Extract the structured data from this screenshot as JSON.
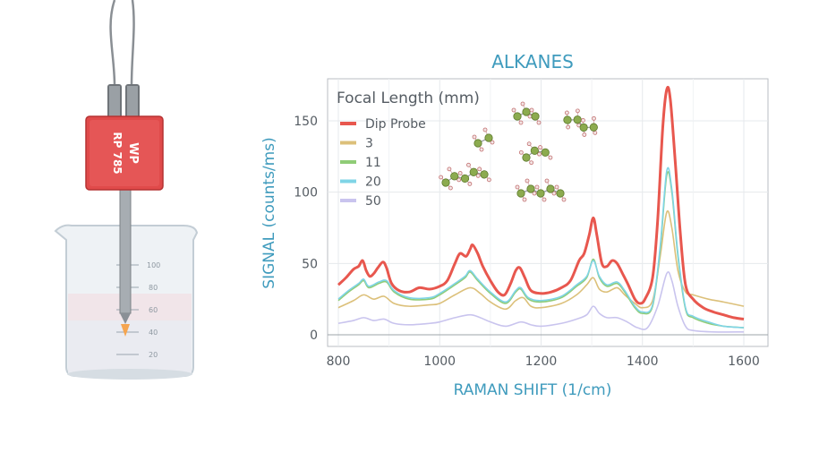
{
  "chart_data": {
    "type": "line",
    "title": "ALKANES",
    "xlabel": "RAMAN SHIFT (1/cm)",
    "ylabel": "SIGNAL (counts/ms)",
    "xlim": [
      780,
      1620
    ],
    "ylim": [
      -8,
      172
    ],
    "xticks": [
      800,
      1000,
      1200,
      1400,
      1600
    ],
    "yticks": [
      0,
      50,
      100,
      150
    ],
    "grid": true,
    "legend": {
      "title": "Focal Length (mm)",
      "position": "top-left"
    },
    "series": [
      {
        "name": "Dip Probe",
        "color": "#e8574e",
        "points": [
          [
            800,
            35
          ],
          [
            815,
            40
          ],
          [
            830,
            46
          ],
          [
            840,
            48
          ],
          [
            848,
            52
          ],
          [
            855,
            45
          ],
          [
            862,
            41
          ],
          [
            870,
            43
          ],
          [
            878,
            47
          ],
          [
            888,
            51
          ],
          [
            895,
            47
          ],
          [
            905,
            36
          ],
          [
            920,
            31
          ],
          [
            940,
            30
          ],
          [
            960,
            33
          ],
          [
            980,
            32
          ],
          [
            1000,
            34
          ],
          [
            1015,
            38
          ],
          [
            1030,
            50
          ],
          [
            1040,
            57
          ],
          [
            1052,
            55
          ],
          [
            1060,
            60
          ],
          [
            1065,
            63
          ],
          [
            1075,
            57
          ],
          [
            1085,
            48
          ],
          [
            1100,
            38
          ],
          [
            1115,
            30
          ],
          [
            1128,
            28
          ],
          [
            1140,
            36
          ],
          [
            1150,
            45
          ],
          [
            1158,
            47
          ],
          [
            1168,
            40
          ],
          [
            1180,
            31
          ],
          [
            1200,
            29
          ],
          [
            1220,
            30
          ],
          [
            1240,
            33
          ],
          [
            1258,
            38
          ],
          [
            1275,
            52
          ],
          [
            1285,
            57
          ],
          [
            1295,
            70
          ],
          [
            1303,
            82
          ],
          [
            1310,
            70
          ],
          [
            1320,
            50
          ],
          [
            1330,
            48
          ],
          [
            1340,
            52
          ],
          [
            1350,
            50
          ],
          [
            1362,
            42
          ],
          [
            1372,
            35
          ],
          [
            1385,
            25
          ],
          [
            1395,
            22
          ],
          [
            1405,
            25
          ],
          [
            1420,
            40
          ],
          [
            1430,
            80
          ],
          [
            1440,
            145
          ],
          [
            1448,
            172
          ],
          [
            1455,
            165
          ],
          [
            1465,
            120
          ],
          [
            1475,
            70
          ],
          [
            1485,
            35
          ],
          [
            1500,
            25
          ],
          [
            1520,
            19
          ],
          [
            1540,
            16
          ],
          [
            1560,
            14
          ],
          [
            1580,
            12
          ],
          [
            1600,
            11
          ]
        ]
      },
      {
        "name": "3",
        "color": "#dcc07a",
        "points": [
          [
            800,
            19
          ],
          [
            830,
            24
          ],
          [
            850,
            28
          ],
          [
            870,
            25
          ],
          [
            890,
            27
          ],
          [
            910,
            22
          ],
          [
            940,
            20
          ],
          [
            980,
            21
          ],
          [
            1000,
            22
          ],
          [
            1030,
            28
          ],
          [
            1060,
            33
          ],
          [
            1080,
            29
          ],
          [
            1100,
            23
          ],
          [
            1130,
            18
          ],
          [
            1150,
            24
          ],
          [
            1165,
            26
          ],
          [
            1180,
            20
          ],
          [
            1200,
            19
          ],
          [
            1240,
            22
          ],
          [
            1270,
            28
          ],
          [
            1290,
            35
          ],
          [
            1303,
            40
          ],
          [
            1315,
            32
          ],
          [
            1330,
            30
          ],
          [
            1350,
            33
          ],
          [
            1365,
            28
          ],
          [
            1385,
            22
          ],
          [
            1400,
            19
          ],
          [
            1420,
            24
          ],
          [
            1435,
            55
          ],
          [
            1448,
            86
          ],
          [
            1458,
            75
          ],
          [
            1470,
            45
          ],
          [
            1485,
            30
          ],
          [
            1500,
            28
          ],
          [
            1530,
            25
          ],
          [
            1560,
            23
          ],
          [
            1600,
            20
          ]
        ]
      },
      {
        "name": "11",
        "color": "#8fcc77",
        "points": [
          [
            800,
            24
          ],
          [
            820,
            30
          ],
          [
            840,
            35
          ],
          [
            850,
            38
          ],
          [
            860,
            33
          ],
          [
            880,
            36
          ],
          [
            895,
            37
          ],
          [
            910,
            30
          ],
          [
            940,
            25
          ],
          [
            980,
            25
          ],
          [
            1000,
            28
          ],
          [
            1030,
            35
          ],
          [
            1050,
            40
          ],
          [
            1060,
            44
          ],
          [
            1075,
            38
          ],
          [
            1100,
            29
          ],
          [
            1130,
            22
          ],
          [
            1150,
            30
          ],
          [
            1160,
            32
          ],
          [
            1175,
            25
          ],
          [
            1200,
            23
          ],
          [
            1240,
            26
          ],
          [
            1270,
            34
          ],
          [
            1290,
            40
          ],
          [
            1303,
            53
          ],
          [
            1315,
            40
          ],
          [
            1330,
            34
          ],
          [
            1350,
            36
          ],
          [
            1365,
            30
          ],
          [
            1385,
            19
          ],
          [
            1400,
            15
          ],
          [
            1420,
            20
          ],
          [
            1435,
            60
          ],
          [
            1448,
            112
          ],
          [
            1458,
            100
          ],
          [
            1470,
            55
          ],
          [
            1485,
            18
          ],
          [
            1500,
            12
          ],
          [
            1530,
            8
          ],
          [
            1560,
            6
          ],
          [
            1600,
            5
          ]
        ]
      },
      {
        "name": "20",
        "color": "#7fd4e6",
        "points": [
          [
            800,
            25
          ],
          [
            820,
            31
          ],
          [
            840,
            36
          ],
          [
            850,
            39
          ],
          [
            860,
            34
          ],
          [
            880,
            37
          ],
          [
            895,
            38
          ],
          [
            910,
            31
          ],
          [
            940,
            26
          ],
          [
            980,
            26
          ],
          [
            1000,
            29
          ],
          [
            1030,
            36
          ],
          [
            1050,
            41
          ],
          [
            1060,
            45
          ],
          [
            1075,
            39
          ],
          [
            1100,
            30
          ],
          [
            1130,
            23
          ],
          [
            1150,
            31
          ],
          [
            1160,
            33
          ],
          [
            1175,
            26
          ],
          [
            1200,
            24
          ],
          [
            1240,
            27
          ],
          [
            1270,
            35
          ],
          [
            1290,
            41
          ],
          [
            1303,
            52
          ],
          [
            1315,
            41
          ],
          [
            1330,
            35
          ],
          [
            1350,
            37
          ],
          [
            1365,
            31
          ],
          [
            1385,
            20
          ],
          [
            1400,
            16
          ],
          [
            1420,
            21
          ],
          [
            1435,
            62
          ],
          [
            1448,
            115
          ],
          [
            1458,
            102
          ],
          [
            1470,
            57
          ],
          [
            1485,
            19
          ],
          [
            1500,
            13
          ],
          [
            1530,
            9
          ],
          [
            1560,
            6
          ],
          [
            1600,
            5
          ]
        ]
      },
      {
        "name": "50",
        "color": "#c9c4ee",
        "points": [
          [
            800,
            8
          ],
          [
            830,
            10
          ],
          [
            850,
            12
          ],
          [
            870,
            10
          ],
          [
            890,
            11
          ],
          [
            910,
            8
          ],
          [
            940,
            7
          ],
          [
            980,
            8
          ],
          [
            1000,
            9
          ],
          [
            1030,
            12
          ],
          [
            1060,
            14
          ],
          [
            1080,
            12
          ],
          [
            1100,
            9
          ],
          [
            1130,
            6
          ],
          [
            1160,
            9
          ],
          [
            1180,
            7
          ],
          [
            1200,
            6
          ],
          [
            1240,
            8
          ],
          [
            1270,
            11
          ],
          [
            1290,
            14
          ],
          [
            1303,
            20
          ],
          [
            1315,
            15
          ],
          [
            1330,
            12
          ],
          [
            1350,
            12
          ],
          [
            1370,
            9
          ],
          [
            1390,
            5
          ],
          [
            1410,
            5
          ],
          [
            1430,
            20
          ],
          [
            1448,
            43
          ],
          [
            1458,
            38
          ],
          [
            1470,
            20
          ],
          [
            1485,
            6
          ],
          [
            1500,
            3
          ],
          [
            1540,
            2
          ],
          [
            1600,
            2
          ]
        ]
      }
    ]
  },
  "illustration": {
    "probe_label_brand": "WP",
    "probe_label_model": "RP 785",
    "beaker_marks": [
      "100",
      "80",
      "60",
      "40",
      "20"
    ]
  }
}
